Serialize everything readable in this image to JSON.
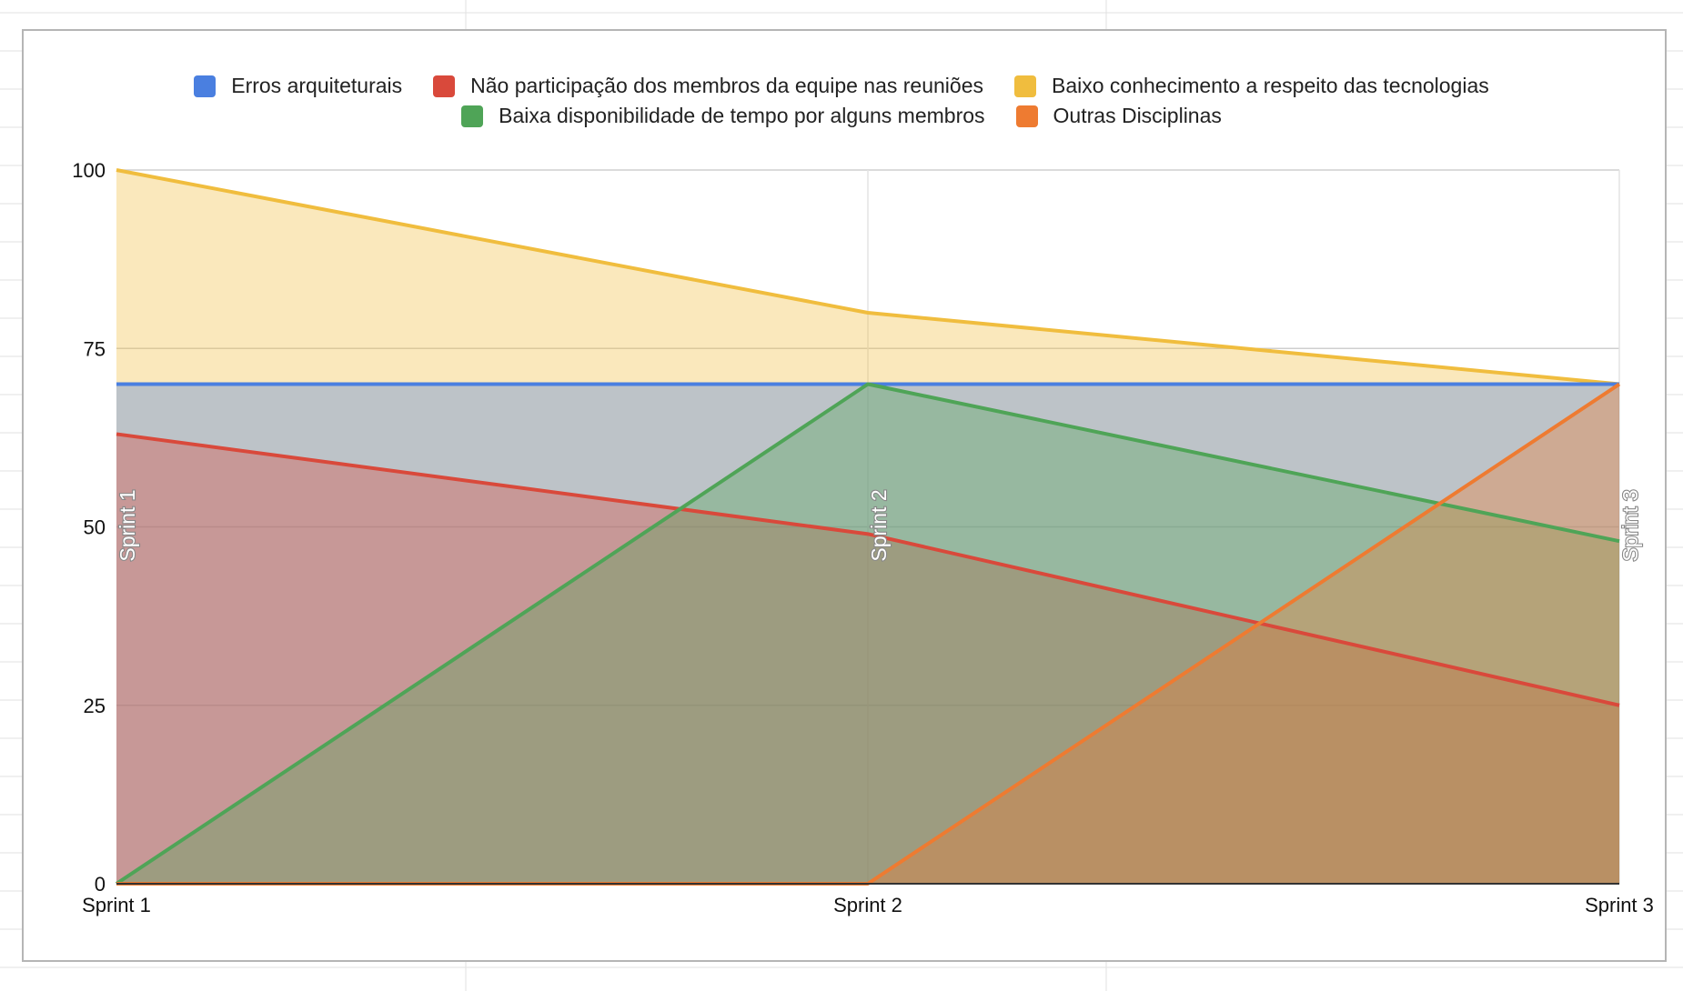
{
  "chart_data": {
    "type": "area",
    "title": "",
    "xlabel": "",
    "ylabel": "",
    "categories": [
      "Sprint 1",
      "Sprint 2",
      "Sprint 3"
    ],
    "ylim": [
      0,
      100
    ],
    "yticks": [
      "0",
      "25",
      "50",
      "75",
      "100"
    ],
    "grid": true,
    "legend_position": "top",
    "series": [
      {
        "name": "Erros arquiteturais",
        "color": "#4a7fe0",
        "values": [
          70,
          70,
          70
        ]
      },
      {
        "name": "Não participação dos membros da equipe nas reuniões",
        "color": "#d9493b",
        "values": [
          63,
          49,
          25
        ]
      },
      {
        "name": "Baixo conhecimento a respeito das tecnologias",
        "color": "#f0bd3e",
        "values": [
          100,
          80,
          70
        ]
      },
      {
        "name": "Baixa disponibilidade de tempo por alguns membros",
        "color": "#4fa457",
        "values": [
          0,
          70,
          48
        ]
      },
      {
        "name": "Outras Disciplinas",
        "color": "#ee7b31",
        "values": [
          0,
          0,
          70
        ]
      }
    ],
    "annotations": [
      "Sprint 1",
      "Sprint 2",
      "Sprint 3"
    ]
  }
}
